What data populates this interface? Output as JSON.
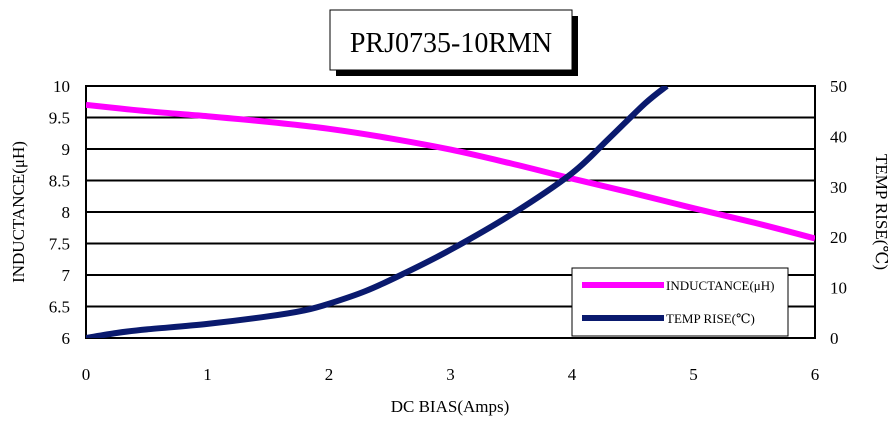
{
  "chart_data": {
    "type": "line",
    "title": "PRJ0735-10RMN",
    "xlabel": "DC BIAS(Amps)",
    "ylabel": "INDUCTANCE(μH)",
    "y2label": "TEMP RISE(℃)",
    "xlim": [
      0,
      6
    ],
    "ylim": [
      6,
      10
    ],
    "y2lim": [
      0,
      50
    ],
    "x_ticks": [
      "0",
      "1",
      "2",
      "3",
      "4",
      "5",
      "6"
    ],
    "y_ticks": [
      "6",
      "6.5",
      "7",
      "7.5",
      "8",
      "8.5",
      "9",
      "9.5",
      "10"
    ],
    "y2_ticks": [
      "0",
      "10",
      "20",
      "30",
      "40",
      "50"
    ],
    "grid": "horizontal",
    "legend_position": "bottom-right",
    "series": [
      {
        "name": "INDUCTANCE(μH)",
        "axis": "left",
        "color": "#ff00ff",
        "x": [
          0,
          0.5,
          1,
          1.5,
          2,
          2.5,
          3,
          3.5,
          4,
          4.5,
          5,
          5.5,
          6
        ],
        "y": [
          9.7,
          9.6,
          9.52,
          9.43,
          9.32,
          9.17,
          8.99,
          8.77,
          8.53,
          8.3,
          8.06,
          7.83,
          7.58
        ]
      },
      {
        "name": "TEMP RISE(℃)",
        "axis": "right",
        "color": "#0a1a6e",
        "x": [
          0,
          0.25,
          0.5,
          1,
          1.5,
          1.8,
          2,
          2.3,
          2.6,
          3,
          3.5,
          4,
          4.3,
          4.6,
          4.78
        ],
        "y": [
          0,
          1,
          1.7,
          2.8,
          4.3,
          5.5,
          6.8,
          9.3,
          12.6,
          17.5,
          24.5,
          32.7,
          39.5,
          46.5,
          50
        ]
      }
    ]
  }
}
